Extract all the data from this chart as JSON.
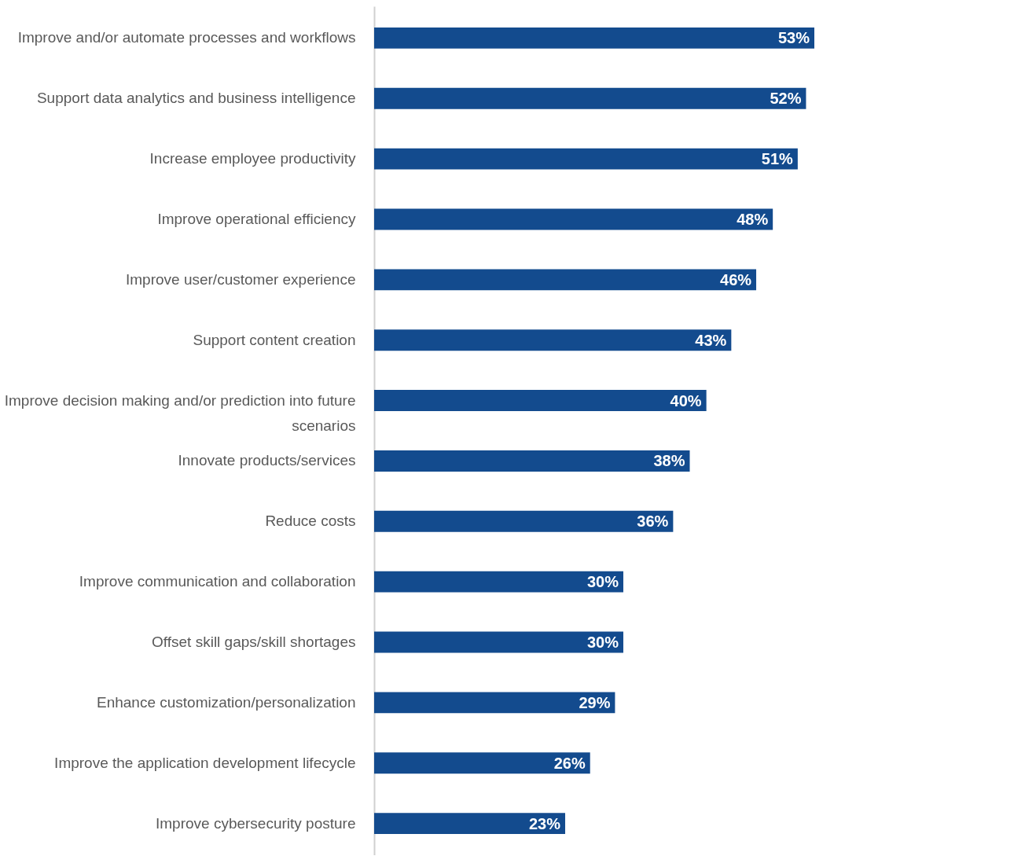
{
  "chart_data": {
    "type": "bar",
    "orientation": "horizontal",
    "categories": [
      "Improve and/or automate processes and workflows",
      "Support data analytics and business intelligence",
      "Increase employee productivity",
      "Improve operational efficiency",
      "Improve user/customer experience",
      "Support content creation",
      "Improve decision making and/or prediction into future scenarios",
      "Innovate products/services",
      "Reduce costs",
      "Improve communication and collaboration",
      "Offset skill gaps/skill shortages",
      "Enhance customization/personalization",
      "Improve the application development lifecycle",
      "Improve cybersecurity posture"
    ],
    "values": [
      53,
      52,
      51,
      48,
      46,
      43,
      40,
      38,
      36,
      30,
      30,
      29,
      26,
      23
    ],
    "value_labels": [
      "53%",
      "52%",
      "51%",
      "48%",
      "46%",
      "43%",
      "40%",
      "38%",
      "36%",
      "30%",
      "30%",
      "29%",
      "26%",
      "23%"
    ],
    "color": "#134b8e",
    "grid": false
  }
}
